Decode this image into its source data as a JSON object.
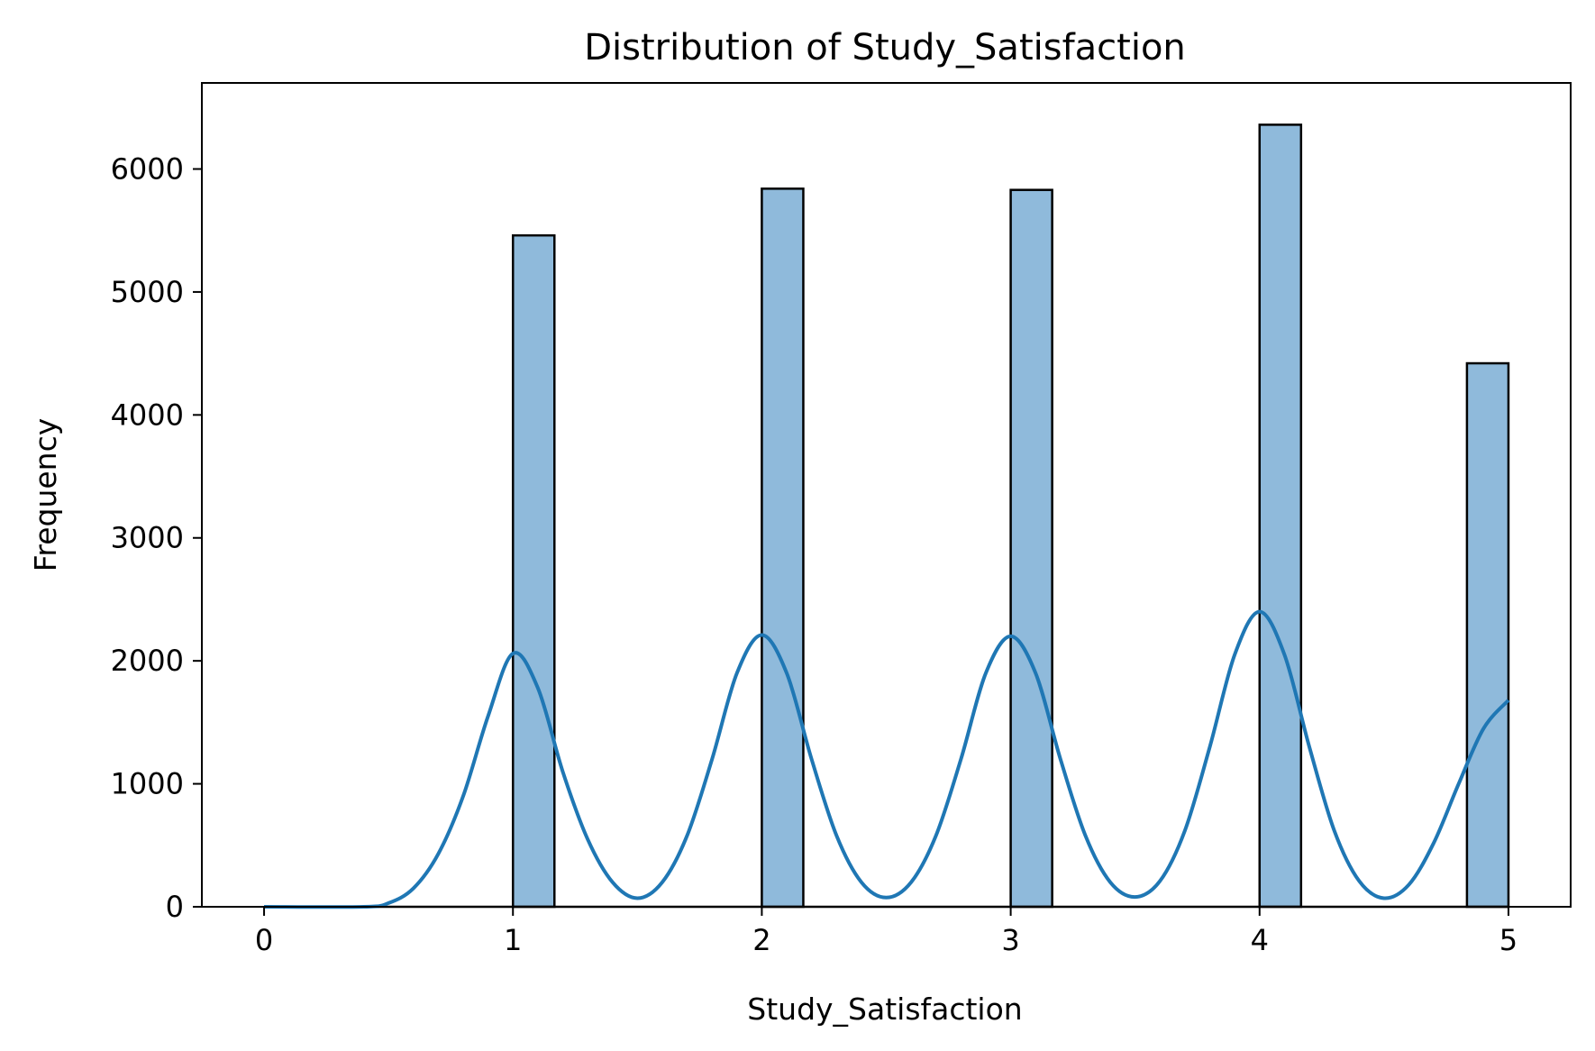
{
  "chart_data": {
    "type": "bar",
    "title": "Distribution of Study_Satisfaction",
    "xlabel": "Study_Satisfaction",
    "ylabel": "Frequency",
    "xlim": [
      -0.25,
      5.25
    ],
    "ylim": [
      0,
      6700
    ],
    "x_ticks": [
      0,
      1,
      2,
      3,
      4,
      5
    ],
    "y_ticks": [
      0,
      1000,
      2000,
      3000,
      4000,
      5000,
      6000
    ],
    "grid": false,
    "legend": "none",
    "histogram": {
      "bin_width": 0.1667,
      "bars": [
        {
          "x_start": 1.0,
          "value": 5460
        },
        {
          "x_start": 2.0,
          "value": 5840
        },
        {
          "x_start": 3.0,
          "value": 5830
        },
        {
          "x_start": 4.0,
          "value": 6360
        },
        {
          "x_start": 4.8333,
          "value": 4420
        }
      ],
      "fill_color": "#8fbadb",
      "edge_color": "#000000"
    },
    "kde": {
      "color": "#1f77b4",
      "points": [
        {
          "x": 0.0,
          "y": 0
        },
        {
          "x": 0.4,
          "y": 0
        },
        {
          "x": 0.5,
          "y": 30
        },
        {
          "x": 0.6,
          "y": 150
        },
        {
          "x": 0.7,
          "y": 430
        },
        {
          "x": 0.8,
          "y": 900
        },
        {
          "x": 0.9,
          "y": 1550
        },
        {
          "x": 1.0,
          "y": 2060
        },
        {
          "x": 1.1,
          "y": 1780
        },
        {
          "x": 1.2,
          "y": 1100
        },
        {
          "x": 1.3,
          "y": 550
        },
        {
          "x": 1.4,
          "y": 200
        },
        {
          "x": 1.5,
          "y": 70
        },
        {
          "x": 1.6,
          "y": 200
        },
        {
          "x": 1.7,
          "y": 580
        },
        {
          "x": 1.8,
          "y": 1200
        },
        {
          "x": 1.9,
          "y": 1900
        },
        {
          "x": 2.0,
          "y": 2210
        },
        {
          "x": 2.1,
          "y": 1900
        },
        {
          "x": 2.2,
          "y": 1200
        },
        {
          "x": 2.3,
          "y": 580
        },
        {
          "x": 2.4,
          "y": 200
        },
        {
          "x": 2.5,
          "y": 75
        },
        {
          "x": 2.6,
          "y": 200
        },
        {
          "x": 2.7,
          "y": 580
        },
        {
          "x": 2.8,
          "y": 1200
        },
        {
          "x": 2.9,
          "y": 1900
        },
        {
          "x": 3.0,
          "y": 2200
        },
        {
          "x": 3.1,
          "y": 1900
        },
        {
          "x": 3.2,
          "y": 1200
        },
        {
          "x": 3.3,
          "y": 580
        },
        {
          "x": 3.4,
          "y": 200
        },
        {
          "x": 3.5,
          "y": 80
        },
        {
          "x": 3.6,
          "y": 210
        },
        {
          "x": 3.7,
          "y": 620
        },
        {
          "x": 3.8,
          "y": 1300
        },
        {
          "x": 3.9,
          "y": 2050
        },
        {
          "x": 4.0,
          "y": 2400
        },
        {
          "x": 4.1,
          "y": 2050
        },
        {
          "x": 4.2,
          "y": 1300
        },
        {
          "x": 4.3,
          "y": 620
        },
        {
          "x": 4.4,
          "y": 210
        },
        {
          "x": 4.5,
          "y": 70
        },
        {
          "x": 4.6,
          "y": 180
        },
        {
          "x": 4.7,
          "y": 520
        },
        {
          "x": 4.8,
          "y": 1000
        },
        {
          "x": 4.9,
          "y": 1450
        },
        {
          "x": 5.0,
          "y": 1680
        }
      ]
    }
  }
}
